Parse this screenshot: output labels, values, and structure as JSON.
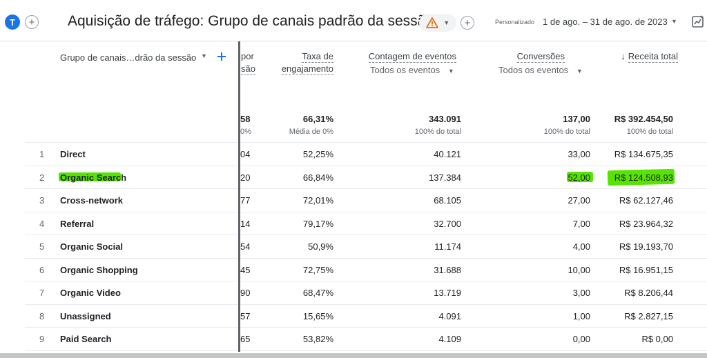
{
  "header": {
    "avatar_letter": "T",
    "title": "Aquisição de tráfego: Grupo de canais padrão da sessão",
    "period_label": "Personalizado",
    "period_value": "1 de ago. – 31 de ago. de 2023"
  },
  "columns": {
    "dimension": "Grupo de canais…drão da sessão",
    "partial_top": "por",
    "partial_bottom": "são",
    "engagement_line1": "Taxa de",
    "engagement_line2": "engajamento",
    "events": "Contagem de eventos",
    "events_filter": "Todos os eventos",
    "conversions": "Conversões",
    "conversions_filter": "Todos os eventos",
    "revenue": "Receita total"
  },
  "totals": {
    "partial": "58",
    "partial_sub": "0%",
    "engagement": "66,31%",
    "engagement_sub": "Média de 0%",
    "events": "343.091",
    "events_sub": "100% do total",
    "conversions": "137,00",
    "conversions_sub": "100% do total",
    "revenue": "R$ 392.454,50",
    "revenue_sub": "100% do total"
  },
  "rows": [
    {
      "idx": "1",
      "channel": "Direct",
      "partial": "04",
      "engagement": "52,25%",
      "events": "40.121",
      "conversions": "33,00",
      "revenue": "R$ 134.675,35"
    },
    {
      "idx": "2",
      "channel": "Organic Search",
      "partial": "20",
      "engagement": "66,84%",
      "events": "137.384",
      "conversions": "52,00",
      "revenue": "R$ 124.508,93"
    },
    {
      "idx": "3",
      "channel": "Cross-network",
      "partial": "77",
      "engagement": "72,01%",
      "events": "68.105",
      "conversions": "27,00",
      "revenue": "R$ 62.127,46"
    },
    {
      "idx": "4",
      "channel": "Referral",
      "partial": "14",
      "engagement": "79,17%",
      "events": "32.700",
      "conversions": "7,00",
      "revenue": "R$ 23.964,32"
    },
    {
      "idx": "5",
      "channel": "Organic Social",
      "partial": "54",
      "engagement": "50,9%",
      "events": "11.174",
      "conversions": "4,00",
      "revenue": "R$ 19.193,70"
    },
    {
      "idx": "6",
      "channel": "Organic Shopping",
      "partial": "45",
      "engagement": "72,75%",
      "events": "31.688",
      "conversions": "10,00",
      "revenue": "R$ 16.951,15"
    },
    {
      "idx": "7",
      "channel": "Organic Video",
      "partial": "90",
      "engagement": "68,47%",
      "events": "13.719",
      "conversions": "3,00",
      "revenue": "R$ 8.206,44"
    },
    {
      "idx": "8",
      "channel": "Unassigned",
      "partial": "57",
      "engagement": "15,65%",
      "events": "4.091",
      "conversions": "1,00",
      "revenue": "R$ 2.827,15"
    },
    {
      "idx": "9",
      "channel": "Paid Search",
      "partial": "65",
      "engagement": "53,82%",
      "events": "4.109",
      "conversions": "0,00",
      "revenue": "R$ 0,00"
    }
  ],
  "colors": {
    "accent": "#1a73e8",
    "highlight": "#57e400",
    "warning": "#e8710a"
  },
  "icons": {
    "add": "add-icon",
    "warning": "warning-icon",
    "caret": "caret-down-icon",
    "insights": "insights-icon",
    "sort": "arrow-down-icon"
  }
}
